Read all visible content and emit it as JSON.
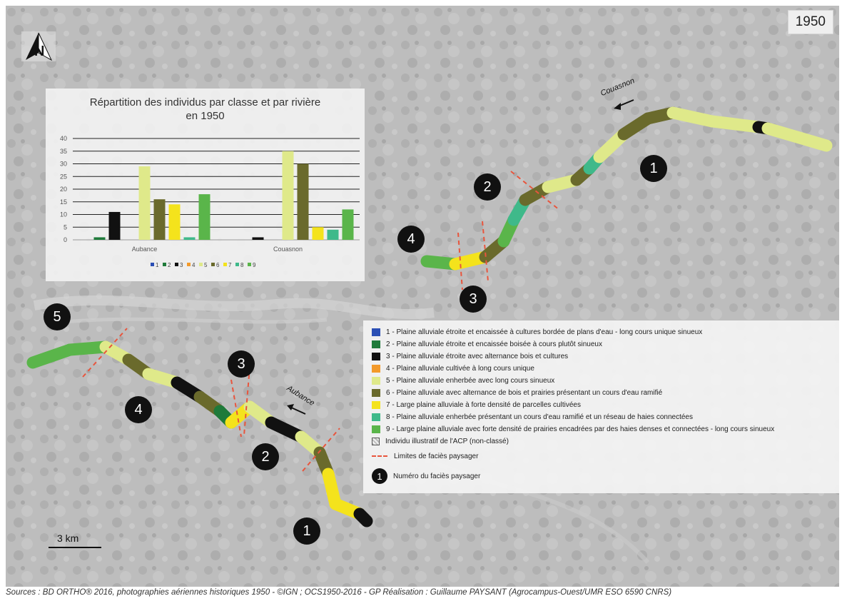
{
  "map": {
    "year": "1950",
    "north_icon": "north-arrow-icon",
    "scale_label": "3 km",
    "sources": "Sources : BD ORTHO® 2016, photographies aériennes historiques 1950 - ©IGN ; OCS1950-2016 - GP Réalisation : Guillaume PAYSANT (Agrocampus-Ouest/UMR ESO 6590 CNRS)",
    "river_labels": [
      "Couasnon",
      "Aubance"
    ],
    "facies_couasnon": [
      "1",
      "2",
      "3",
      "4"
    ],
    "facies_aubance": [
      "1",
      "2",
      "3",
      "4",
      "5"
    ]
  },
  "chart_data": {
    "type": "bar",
    "title": "Répartition des individus par classe et par rivière en 1950",
    "title_lines": [
      "Répartition des individus par classe et par rivière",
      "en 1950"
    ],
    "categories": [
      "Aubance",
      "Couasnon"
    ],
    "ylim": [
      0,
      40
    ],
    "yticks": [
      "0",
      "5",
      "10",
      "15",
      "20",
      "25",
      "30",
      "35",
      "40"
    ],
    "series": [
      {
        "name": "1",
        "color": "#2b4fb5",
        "values": [
          0,
          0
        ]
      },
      {
        "name": "2",
        "color": "#1f7a3a",
        "values": [
          1,
          0
        ]
      },
      {
        "name": "3",
        "color": "#111111",
        "values": [
          11,
          1
        ]
      },
      {
        "name": "4",
        "color": "#f39a2b",
        "values": [
          0,
          0
        ]
      },
      {
        "name": "5",
        "color": "#dfe98a",
        "values": [
          29,
          35
        ]
      },
      {
        "name": "6",
        "color": "#6a6a2c",
        "values": [
          16,
          30
        ]
      },
      {
        "name": "7",
        "color": "#f4e31c",
        "values": [
          14,
          5
        ]
      },
      {
        "name": "8",
        "color": "#3fb98a",
        "values": [
          1,
          4
        ]
      },
      {
        "name": "9",
        "color": "#5ab54a",
        "values": [
          18,
          12
        ]
      }
    ]
  },
  "legend": {
    "items": [
      {
        "color": "#2b4fb5",
        "label": "1 - Plaine alluviale étroite et encaissée à cultures bordée de plans d'eau - long cours unique sinueux"
      },
      {
        "color": "#1f7a3a",
        "label": "2 - Plaine alluviale étroite et encaissée boisée à cours plutôt sinueux"
      },
      {
        "color": "#111111",
        "label": "3 - Plaine alluviale étroite avec alternance bois et cultures"
      },
      {
        "color": "#f39a2b",
        "label": "4 - Plaine alluviale cultivée à long cours unique"
      },
      {
        "color": "#dfe98a",
        "label": "5 - Plaine alluviale enherbée avec long cours sinueux"
      },
      {
        "color": "#6a6a2c",
        "label": "6 - Plaine alluviale avec alternance de bois et prairies présentant un cours d'eau ramifié"
      },
      {
        "color": "#f4e31c",
        "label": "7 - Large plaine alluviale à forte densité de parcelles cultivées"
      },
      {
        "color": "#3fb98a",
        "label": "8 - Plaine alluviale enherbée présentant un cours d'eau ramifié et un réseau de haies connectées"
      },
      {
        "color": "#5ab54a",
        "label": "9 - Large plaine alluviale avec forte densité de prairies encadrées par des haies denses et connectées - long cours sinueux"
      }
    ],
    "unclassified_label": "Individu illustratif de l'ACP (non-classé)",
    "limits_label": "Limites de faciès paysager",
    "number_symbol": "1",
    "number_label": "Numéro du faciès paysager"
  }
}
